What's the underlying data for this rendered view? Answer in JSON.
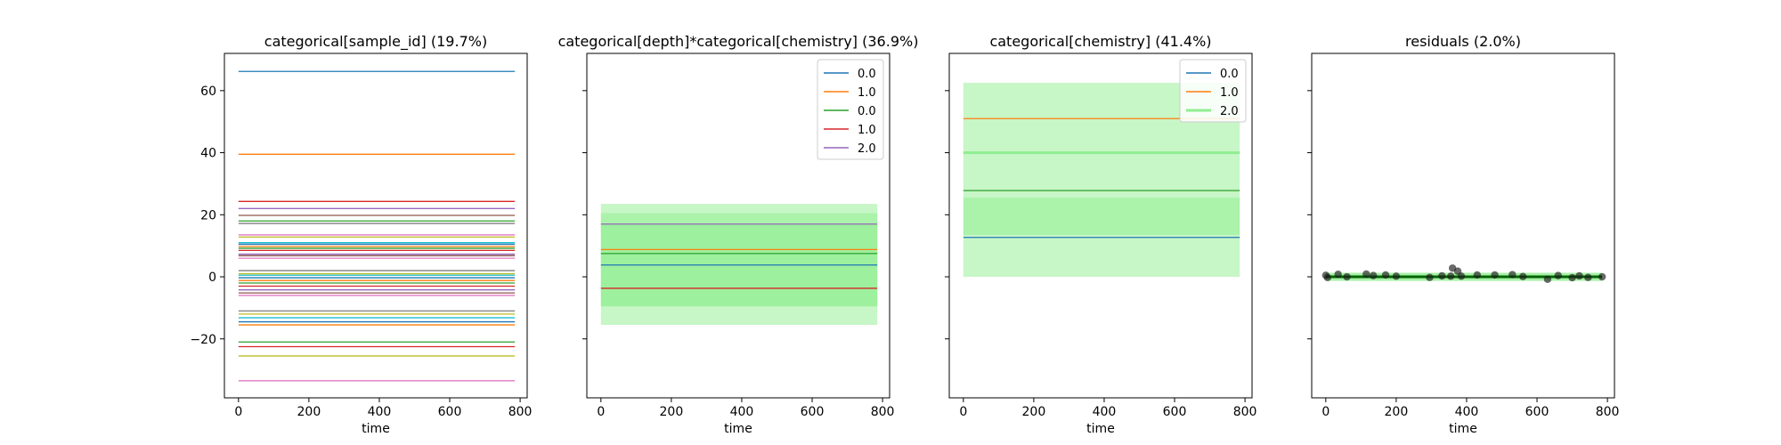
{
  "chart_data": [
    {
      "type": "line",
      "title": "categorical[sample_id] (19.7%)",
      "xlabel": "time",
      "ylabel": "",
      "xlim": [
        -40,
        820
      ],
      "ylim": [
        -39,
        72
      ],
      "x_ticks": [
        0,
        200,
        400,
        600,
        800
      ],
      "y_ticks": [
        60,
        40,
        20,
        0,
        -20
      ],
      "show_y_tick_labels": true,
      "legend": null,
      "x_range": [
        0,
        785
      ],
      "series": [
        {
          "value": 66.2,
          "color": "#1f77b4"
        },
        {
          "value": 39.5,
          "color": "#ff7f0e"
        },
        {
          "value": 24.3,
          "color": "#d62728"
        },
        {
          "value": 22.0,
          "color": "#9467bd"
        },
        {
          "value": 19.8,
          "color": "#8c564b"
        },
        {
          "value": 18.0,
          "color": "#2ca02c"
        },
        {
          "value": 17.2,
          "color": "#7f7f7f"
        },
        {
          "value": 13.5,
          "color": "#e377c2"
        },
        {
          "value": 12.8,
          "color": "#bcbd22"
        },
        {
          "value": 11.0,
          "color": "#17becf"
        },
        {
          "value": 10.5,
          "color": "#1f77b4"
        },
        {
          "value": 9.8,
          "color": "#ff7f0e"
        },
        {
          "value": 9.2,
          "color": "#2ca02c"
        },
        {
          "value": 8.5,
          "color": "#d62728"
        },
        {
          "value": 7.3,
          "color": "#9467bd"
        },
        {
          "value": 6.8,
          "color": "#8c564b"
        },
        {
          "value": 6.0,
          "color": "#e377c2"
        },
        {
          "value": 2.0,
          "color": "#7f7f7f"
        },
        {
          "value": 1.0,
          "color": "#bcbd22"
        },
        {
          "value": 0.5,
          "color": "#17becf"
        },
        {
          "value": -0.3,
          "color": "#1f77b4"
        },
        {
          "value": -1.2,
          "color": "#ff7f0e"
        },
        {
          "value": -2.0,
          "color": "#2ca02c"
        },
        {
          "value": -3.0,
          "color": "#d62728"
        },
        {
          "value": -4.2,
          "color": "#9467bd"
        },
        {
          "value": -5.2,
          "color": "#8c564b"
        },
        {
          "value": -6.0,
          "color": "#e377c2"
        },
        {
          "value": -11.0,
          "color": "#7f7f7f"
        },
        {
          "value": -12.0,
          "color": "#bcbd22"
        },
        {
          "value": -13.2,
          "color": "#17becf"
        },
        {
          "value": -14.5,
          "color": "#1f77b4"
        },
        {
          "value": -15.5,
          "color": "#ff7f0e"
        },
        {
          "value": -21.0,
          "color": "#2ca02c"
        },
        {
          "value": -22.5,
          "color": "#d62728"
        },
        {
          "value": -25.5,
          "color": "#bcbd22"
        },
        {
          "value": -33.5,
          "color": "#e377c2"
        }
      ]
    },
    {
      "type": "line",
      "title": "categorical[depth]*categorical[chemistry] (36.9%)",
      "xlabel": "time",
      "ylabel": "",
      "xlim": [
        -40,
        820
      ],
      "ylim": [
        -39,
        72
      ],
      "x_ticks": [
        0,
        200,
        400,
        600,
        800
      ],
      "y_ticks": [
        60,
        40,
        20,
        0,
        -20
      ],
      "show_y_tick_labels": false,
      "legend": "top-right",
      "x_range": [
        0,
        785
      ],
      "bands": [
        {
          "low": -15.5,
          "high": 23.5,
          "color": "#90ee90",
          "opacity": 0.5
        },
        {
          "low": -9.5,
          "high": 20.5,
          "color": "#90ee90",
          "opacity": 0.5
        },
        {
          "low": -9.5,
          "high": 17.0,
          "color": "#90ee90",
          "opacity": 0.5
        }
      ],
      "series": [
        {
          "name": "0.0",
          "value": 3.8,
          "color": "#1f77b4"
        },
        {
          "name": "1.0",
          "value": 8.8,
          "color": "#ff7f0e"
        },
        {
          "name": "0.0",
          "value": 7.5,
          "color": "#2ca02c"
        },
        {
          "name": "1.0",
          "value": -3.7,
          "color": "#d62728"
        },
        {
          "name": "2.0",
          "value": 17.0,
          "color": "#9467bd"
        }
      ]
    },
    {
      "type": "line",
      "title": "categorical[chemistry] (41.4%)",
      "xlabel": "time",
      "ylabel": "",
      "xlim": [
        -40,
        820
      ],
      "ylim": [
        -39,
        72
      ],
      "x_ticks": [
        0,
        200,
        400,
        600,
        800
      ],
      "y_ticks": [
        60,
        40,
        20,
        0,
        -20
      ],
      "show_y_tick_labels": false,
      "legend": "top-right",
      "x_range": [
        0,
        785
      ],
      "bands": [
        {
          "low": 0.0,
          "high": 62.5,
          "color": "#90ee90",
          "opacity": 0.5
        },
        {
          "low": 13.5,
          "high": 25.5,
          "color": "#90ee90",
          "opacity": 0.5
        }
      ],
      "series": [
        {
          "name": "0.0",
          "value": 12.7,
          "color": "#1f77b4"
        },
        {
          "name": "1.0",
          "value": 51.0,
          "color": "#ff7f0e"
        },
        {
          "name": "2.0",
          "value": 40.0,
          "color": "#90ee90",
          "width": 3
        },
        {
          "value": 27.8,
          "color": "#2ca02c"
        }
      ]
    },
    {
      "type": "scatter",
      "title": "residuals (2.0%)",
      "xlabel": "time",
      "ylabel": "",
      "xlim": [
        -40,
        820
      ],
      "ylim": [
        -39,
        72
      ],
      "x_ticks": [
        0,
        200,
        400,
        600,
        800
      ],
      "y_ticks": [
        60,
        40,
        20,
        0,
        -20
      ],
      "show_y_tick_labels": false,
      "legend": null,
      "x_range": [
        0,
        785
      ],
      "bands": [
        {
          "low": -1.3,
          "high": 1.3,
          "color": "#90ee90",
          "opacity": 0.8
        }
      ],
      "fit_line": {
        "value": 0.0,
        "color": "#006400"
      },
      "points": [
        {
          "x": 0,
          "y": 0.5
        },
        {
          "x": 5,
          "y": -0.2
        },
        {
          "x": 35,
          "y": 0.8
        },
        {
          "x": 60,
          "y": 0.0
        },
        {
          "x": 115,
          "y": 0.9
        },
        {
          "x": 135,
          "y": 0.4
        },
        {
          "x": 170,
          "y": 0.6
        },
        {
          "x": 200,
          "y": 0.2
        },
        {
          "x": 295,
          "y": -0.2
        },
        {
          "x": 330,
          "y": 0.3
        },
        {
          "x": 355,
          "y": 0.2
        },
        {
          "x": 360,
          "y": 2.8
        },
        {
          "x": 375,
          "y": 1.8
        },
        {
          "x": 385,
          "y": 0.2
        },
        {
          "x": 430,
          "y": 0.6
        },
        {
          "x": 480,
          "y": 0.6
        },
        {
          "x": 530,
          "y": 0.7
        },
        {
          "x": 560,
          "y": 0.1
        },
        {
          "x": 630,
          "y": -0.8
        },
        {
          "x": 660,
          "y": 0.4
        },
        {
          "x": 700,
          "y": -0.3
        },
        {
          "x": 720,
          "y": 0.3
        },
        {
          "x": 745,
          "y": -0.2
        },
        {
          "x": 785,
          "y": 0.0
        }
      ]
    }
  ]
}
